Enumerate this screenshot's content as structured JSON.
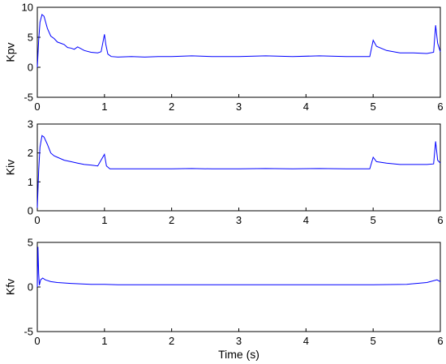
{
  "chart_data": [
    {
      "type": "line",
      "xlabel": "",
      "ylabel": "Kpv",
      "xlim": [
        0,
        6
      ],
      "ylim": [
        -5,
        10
      ],
      "xticks": [
        0,
        1,
        2,
        3,
        4,
        5,
        6
      ],
      "yticks": [
        -5,
        0,
        5,
        10
      ],
      "grid": false,
      "line_color": "#0000ff",
      "series": [
        {
          "x": [
            0,
            0.02,
            0.04,
            0.07,
            0.1,
            0.15,
            0.2,
            0.25,
            0.3,
            0.35,
            0.4,
            0.45,
            0.5,
            0.55,
            0.6,
            0.7,
            0.8,
            0.9,
            0.95,
            1.0,
            1.02,
            1.05,
            1.1,
            1.2,
            1.4,
            1.6,
            1.8,
            2.0,
            2.3,
            2.6,
            3.0,
            3.4,
            3.8,
            4.2,
            4.6,
            4.95,
            5.0,
            5.05,
            5.2,
            5.4,
            5.6,
            5.8,
            5.9,
            5.93,
            5.96,
            6.0
          ],
          "y": [
            0,
            4.5,
            7.5,
            8.8,
            8.5,
            6.5,
            5.2,
            4.8,
            4.2,
            4.0,
            3.8,
            3.3,
            3.2,
            3.0,
            3.4,
            2.8,
            2.5,
            2.4,
            2.6,
            5.5,
            3.8,
            2.2,
            1.8,
            1.7,
            1.8,
            1.7,
            1.8,
            1.8,
            1.9,
            1.8,
            1.8,
            1.9,
            1.8,
            1.9,
            1.8,
            1.8,
            4.5,
            3.5,
            2.8,
            2.4,
            2.4,
            2.3,
            2.5,
            7.0,
            4.0,
            2.6
          ]
        }
      ]
    },
    {
      "type": "line",
      "xlabel": "",
      "ylabel": "Kiv",
      "xlim": [
        0,
        6
      ],
      "ylim": [
        0,
        3
      ],
      "xticks": [
        0,
        1,
        2,
        3,
        4,
        5,
        6
      ],
      "yticks": [
        0,
        1,
        2,
        3
      ],
      "grid": false,
      "line_color": "#0000ff",
      "series": [
        {
          "x": [
            0,
            0.02,
            0.04,
            0.07,
            0.1,
            0.15,
            0.2,
            0.25,
            0.3,
            0.4,
            0.5,
            0.6,
            0.7,
            0.8,
            0.9,
            1.0,
            1.03,
            1.08,
            1.2,
            1.4,
            1.6,
            1.8,
            2.0,
            2.3,
            2.6,
            3.0,
            3.4,
            3.8,
            4.2,
            4.6,
            4.95,
            5.0,
            5.05,
            5.2,
            5.4,
            5.6,
            5.8,
            5.9,
            5.93,
            5.96,
            6.0
          ],
          "y": [
            0.1,
            1.4,
            2.2,
            2.6,
            2.55,
            2.3,
            2.0,
            1.9,
            1.85,
            1.75,
            1.7,
            1.65,
            1.6,
            1.58,
            1.55,
            1.95,
            1.55,
            1.45,
            1.45,
            1.45,
            1.45,
            1.45,
            1.45,
            1.46,
            1.45,
            1.45,
            1.46,
            1.45,
            1.46,
            1.45,
            1.45,
            1.85,
            1.7,
            1.65,
            1.6,
            1.6,
            1.6,
            1.62,
            2.4,
            1.75,
            1.65
          ]
        }
      ]
    },
    {
      "type": "line",
      "xlabel": "Time (s)",
      "ylabel": "Kfv",
      "xlim": [
        0,
        6
      ],
      "ylim": [
        -5,
        5
      ],
      "xticks": [
        0,
        1,
        2,
        3,
        4,
        5,
        6
      ],
      "yticks": [
        -5,
        0,
        5
      ],
      "grid": false,
      "line_color": "#0000ff",
      "series": [
        {
          "x": [
            0,
            0.01,
            0.02,
            0.03,
            0.05,
            0.08,
            0.12,
            0.2,
            0.3,
            0.5,
            0.8,
            1.0,
            1.2,
            1.6,
            2.0,
            3.0,
            4.0,
            5.0,
            5.5,
            5.8,
            5.95,
            6.0
          ],
          "y": [
            0,
            4.5,
            1.5,
            0.2,
            0.8,
            1.0,
            0.8,
            0.6,
            0.5,
            0.4,
            0.3,
            0.3,
            0.25,
            0.25,
            0.25,
            0.25,
            0.25,
            0.25,
            0.3,
            0.5,
            0.8,
            0.6
          ]
        }
      ]
    }
  ]
}
